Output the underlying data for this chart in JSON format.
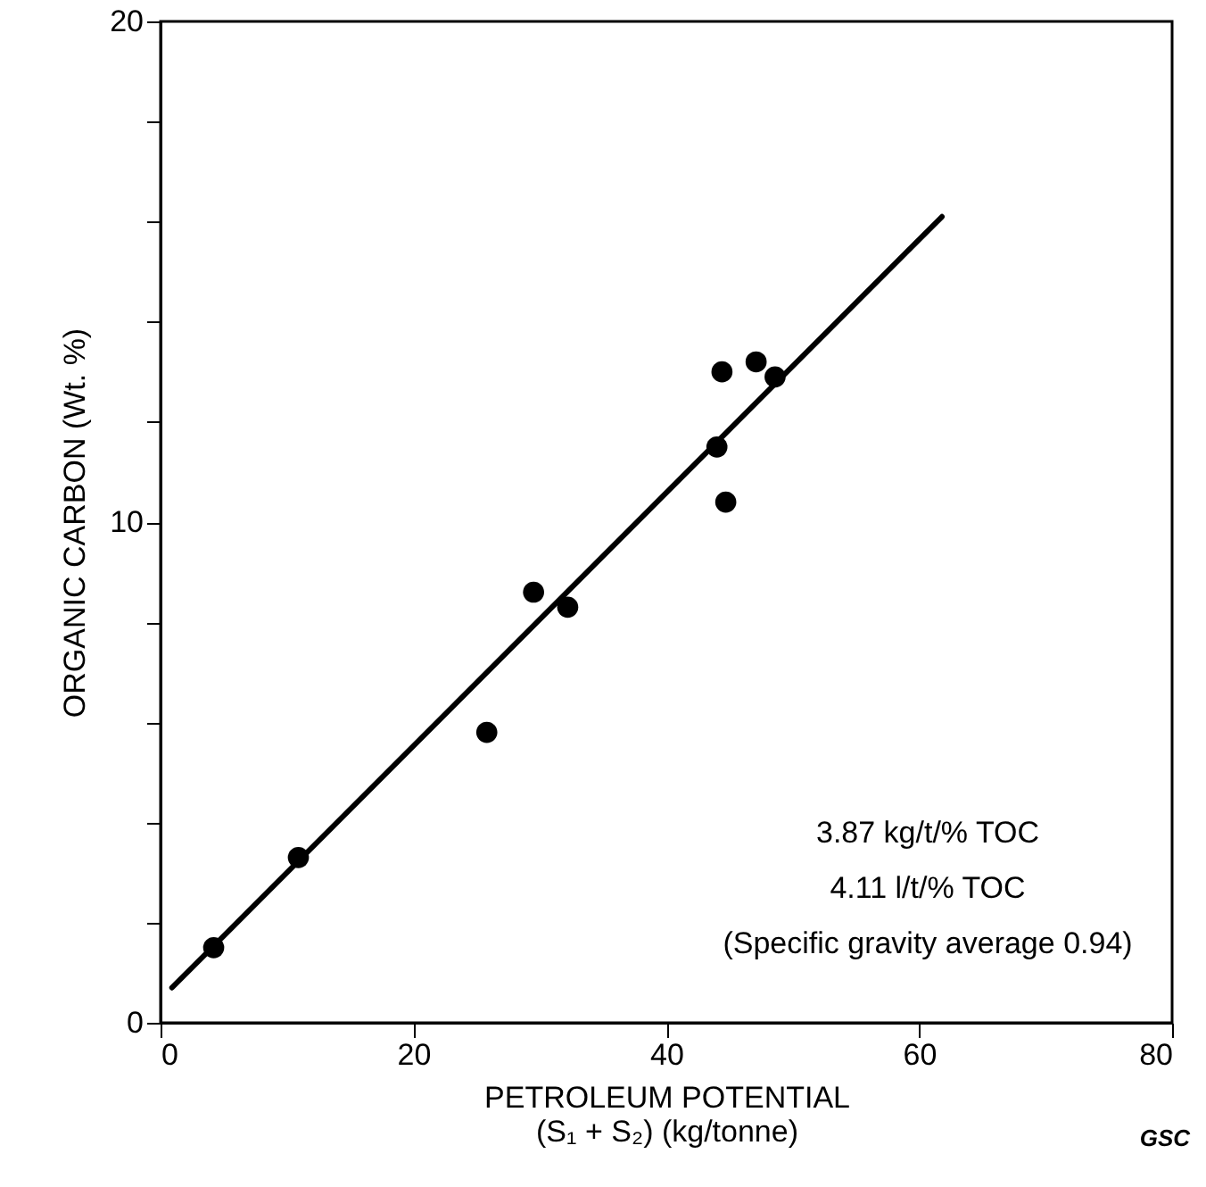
{
  "chart_data": {
    "type": "scatter",
    "xlabel": "PETROLEUM POTENTIAL\n(S₁ + S₂) (kg/tonne)",
    "ylabel": "ORGANIC CARBON (Wt. %)",
    "series": [
      {
        "color": "#000000",
        "x": [
          4.2,
          10.9,
          25.8,
          29.5,
          32.2,
          44.0,
          44.4,
          44.7,
          47.1,
          48.6
        ],
        "values": [
          1.5,
          3.3,
          5.8,
          8.6,
          8.3,
          11.5,
          13.0,
          10.4,
          13.2,
          12.9
        ]
      },
      {
        "type": "line",
        "marker": "none",
        "line_style": "solid",
        "color": "#000000",
        "x": [
          0.9,
          61.8
        ],
        "values": [
          0.7,
          16.1
        ]
      }
    ],
    "xlim": [
      0,
      80
    ],
    "ylim": [
      0,
      20
    ],
    "xticks": [
      0,
      20,
      40,
      60,
      80
    ],
    "yticks": [
      0,
      {
        "value": 2,
        "label": null
      },
      {
        "value": 4,
        "label": null
      },
      {
        "value": 6,
        "label": null
      },
      {
        "value": 8,
        "label": null
      },
      10,
      {
        "value": 12,
        "label": null
      },
      {
        "value": 14,
        "label": null
      },
      {
        "value": 16,
        "label": null
      },
      {
        "value": 18,
        "label": null
      },
      20
    ],
    "marker": "circle",
    "grid": false,
    "annotations": [
      "3.87 kg/t/% TOC",
      "4.11 l/t/% TOC",
      "(Specific gravity average 0.94)",
      "GSC"
    ]
  }
}
